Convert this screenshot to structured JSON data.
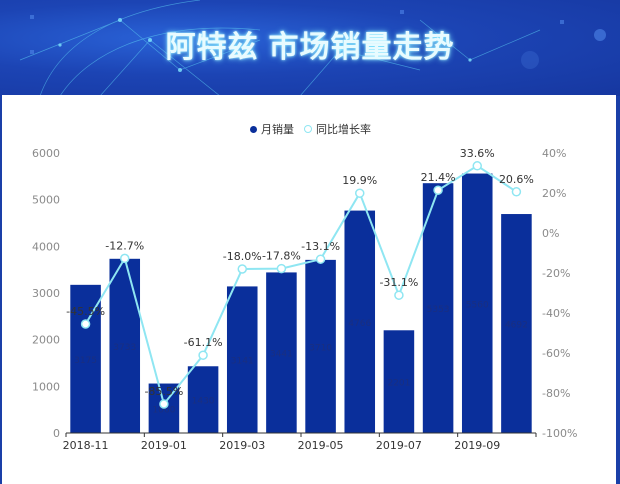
{
  "header": {
    "title_brand": "阿特兹",
    "title_rest": "市场销量走势"
  },
  "legend": {
    "bar_label": "月销量",
    "line_label": "同比增长率"
  },
  "colors": {
    "bar": "#0a2f9b",
    "line": "#8fe6f2",
    "banner": "#1c44b4"
  },
  "chart_data": {
    "type": "bar",
    "title": "阿特兹 市场销量走势",
    "categories": [
      "2018-11",
      "2018-12",
      "2019-01",
      "2019-02",
      "2019-03",
      "2019-04",
      "2019-05",
      "2019-06",
      "2019-07",
      "2019-08",
      "2019-09",
      "2019-10"
    ],
    "x_tick_labels": [
      "2018-11",
      "2019-01",
      "2019-03",
      "2019-05",
      "2019-07",
      "2019-09"
    ],
    "series": [
      {
        "name": "月销量",
        "type": "bar",
        "axis": "left",
        "values": [
          3175,
          3733,
          1060,
          1430,
          3141,
          3441,
          3710,
          4766,
          2201,
          5353,
          5560,
          4692
        ]
      },
      {
        "name": "同比增长率",
        "type": "line",
        "axis": "right",
        "unit": "%",
        "values": [
          -45.5,
          -12.7,
          -85.5,
          -61.1,
          -18.0,
          -17.8,
          -13.1,
          19.9,
          -31.1,
          21.4,
          33.6,
          20.6
        ],
        "labels": [
          "-45.5%",
          "-12.7%",
          "-85.5%",
          "-61.1%",
          "-18.0%",
          "-17.8%",
          "-13.1%",
          "19.9%",
          "-31.1%",
          "21.4%",
          "33.6%",
          "20.6%"
        ]
      }
    ],
    "ylim_left": [
      0,
      6000
    ],
    "yticks_left": [
      "0",
      "1000",
      "2000",
      "3000",
      "4000",
      "5000",
      "6000"
    ],
    "ylim_right": [
      -100,
      40
    ],
    "yticks_right": [
      "-100%",
      "-80%",
      "-60%",
      "-40%",
      "-20%",
      "0%",
      "20%",
      "40%"
    ],
    "grid": false,
    "legend_position": "top"
  }
}
